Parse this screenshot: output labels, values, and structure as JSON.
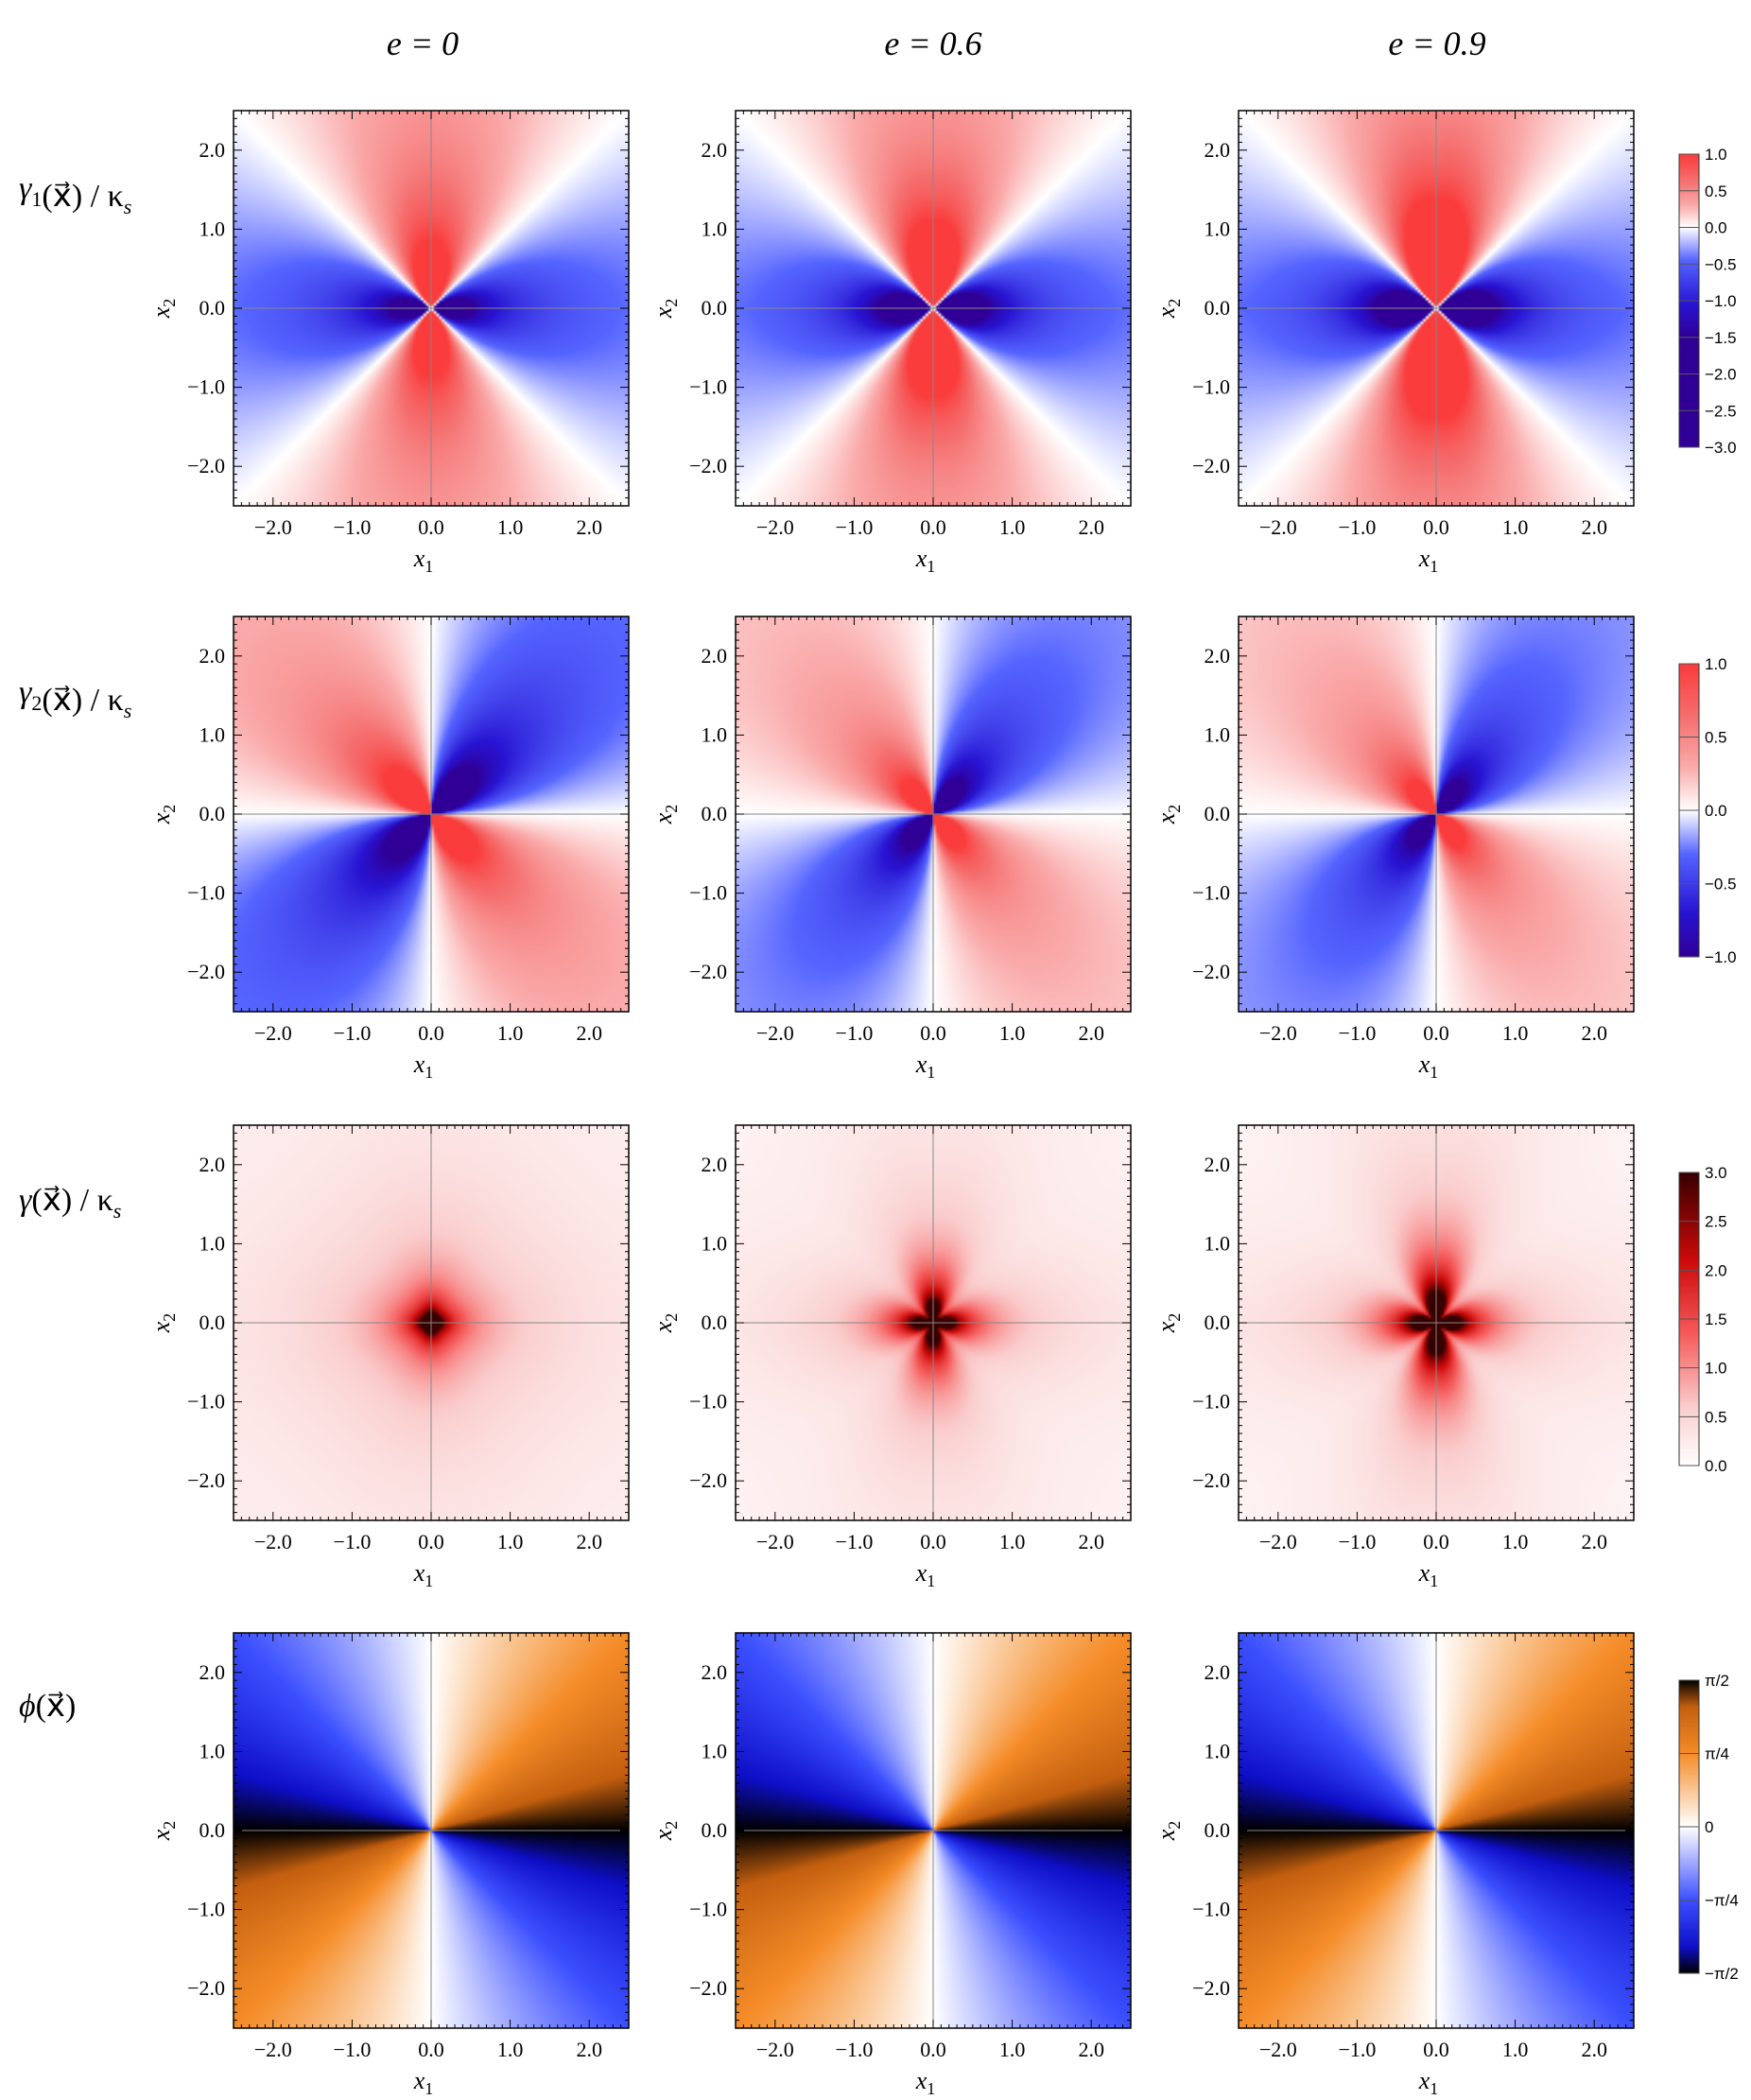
{
  "figure": {
    "column_titles": [
      "e = 0",
      "e = 0.6",
      "e = 0.9"
    ],
    "row_labels": [
      {
        "main": "γ",
        "sub": "1",
        "rest": "(x⃗) / κ",
        "sub2": "s"
      },
      {
        "main": "γ",
        "sub": "2",
        "rest": "(x⃗) / κ",
        "sub2": "s"
      },
      {
        "main": "γ",
        "sub": "",
        "rest": "(x⃗) / κ",
        "sub2": "s"
      },
      {
        "main": "ϕ",
        "sub": "",
        "rest": "(x⃗)",
        "sub2": ""
      }
    ],
    "x_axis_label": {
      "main": "x",
      "sub": "1"
    },
    "y_axis_label": {
      "main": "x",
      "sub": "2"
    }
  },
  "chart_data": {
    "type": "heatmap",
    "eccentricities": [
      0,
      0.6,
      0.9
    ],
    "xlim": [
      -2.5,
      2.5
    ],
    "ylim": [
      -2.5,
      2.5
    ],
    "xticks": [
      "−2.0",
      "−1.0",
      "0.0",
      "1.0",
      "2.0"
    ],
    "xtick_values": [
      -2.0,
      -1.0,
      0.0,
      1.0,
      2.0
    ],
    "yticks": [
      "2.0",
      "1.0",
      "0.0",
      "−1.0",
      "−2.0"
    ],
    "ytick_values": [
      2.0,
      1.0,
      0.0,
      -1.0,
      -2.0
    ],
    "rows": [
      {
        "quantity": "gamma1",
        "colormap": "blue-white-red",
        "colorbar": {
          "min": -3.0,
          "max": 1.0,
          "ticks": [
            "1.0",
            "0.5",
            "0.0",
            "−0.5",
            "−1.0",
            "−1.5",
            "−2.0",
            "−2.5",
            "−3.0"
          ],
          "tick_values": [
            1.0,
            0.5,
            0.0,
            -0.5,
            -1.0,
            -1.5,
            -2.0,
            -2.5,
            -3.0
          ]
        }
      },
      {
        "quantity": "gamma2",
        "colormap": "blue-white-red",
        "colorbar": {
          "min": -1.0,
          "max": 1.0,
          "ticks": [
            "1.0",
            "0.5",
            "0.0",
            "−0.5",
            "−1.0"
          ],
          "tick_values": [
            1.0,
            0.5,
            0.0,
            -0.5,
            -1.0
          ]
        }
      },
      {
        "quantity": "gamma",
        "colormap": "white-red-black",
        "colorbar": {
          "min": 0.0,
          "max": 3.0,
          "ticks": [
            "3.0",
            "2.5",
            "2.0",
            "1.5",
            "1.0",
            "0.5",
            "0.0"
          ],
          "tick_values": [
            3.0,
            2.5,
            2.0,
            1.5,
            1.0,
            0.5,
            0.0
          ]
        }
      },
      {
        "quantity": "phi",
        "colormap": "black-blue-white-orange-black",
        "colorbar": {
          "min": -1.5708,
          "max": 1.5708,
          "ticks": [
            "π/2",
            "π/4",
            "0",
            "−π/4",
            "−π/2"
          ],
          "tick_values": [
            1.5708,
            0.7854,
            0.0,
            -0.7854,
            -1.5708
          ]
        }
      }
    ]
  }
}
